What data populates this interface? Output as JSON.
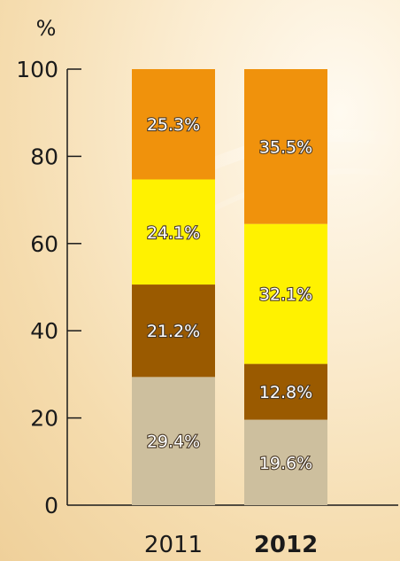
{
  "chart_data": {
    "type": "bar",
    "stacked": true,
    "ylabel": "%",
    "ylim": [
      0,
      100
    ],
    "yticks": [
      0,
      20,
      40,
      60,
      80,
      100
    ],
    "categories": [
      "2011",
      "2012"
    ],
    "category_emphasis": [
      false,
      true
    ],
    "series": [
      {
        "values": [
          29.4,
          19.6
        ],
        "labels": [
          "29.4%",
          "19.6%"
        ],
        "color": "#cdbf9e"
      },
      {
        "values": [
          21.2,
          12.8
        ],
        "labels": [
          "21.2%",
          "12.8%"
        ],
        "color": "#9a5a00"
      },
      {
        "values": [
          24.1,
          32.1
        ],
        "labels": [
          "24.1%",
          "32.1%"
        ],
        "color": "#fff200"
      },
      {
        "values": [
          25.3,
          35.5
        ],
        "labels": [
          "25.3%",
          "35.5%"
        ],
        "color": "#f0920c"
      }
    ],
    "grid": false,
    "legend": "none"
  }
}
